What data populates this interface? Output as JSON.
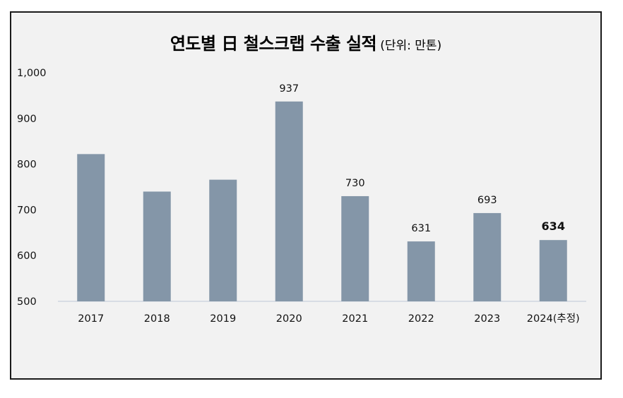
{
  "chart_data": {
    "type": "bar",
    "title": "연도별 日 철스크랩 수출 실적",
    "subtitle": "(단위: 만톤)",
    "xlabel": "",
    "ylabel": "",
    "categories": [
      "2017",
      "2018",
      "2019",
      "2020",
      "2021",
      "2022",
      "2023",
      "2024(추정)"
    ],
    "values": [
      822,
      740,
      766,
      937,
      730,
      631,
      693,
      634
    ],
    "data_labels": [
      "",
      "",
      "",
      "937",
      "730",
      "631",
      "693",
      "634"
    ],
    "bold_labels": [
      false,
      false,
      false,
      false,
      false,
      false,
      false,
      true
    ],
    "ylim": [
      500,
      1000
    ],
    "yticks": [
      500,
      600,
      700,
      800,
      900,
      1000
    ],
    "ytick_labels": [
      "500",
      "600",
      "700",
      "800",
      "900",
      "1,000"
    ],
    "grid": false,
    "legend": "none",
    "bar_color": "#8496a8"
  }
}
